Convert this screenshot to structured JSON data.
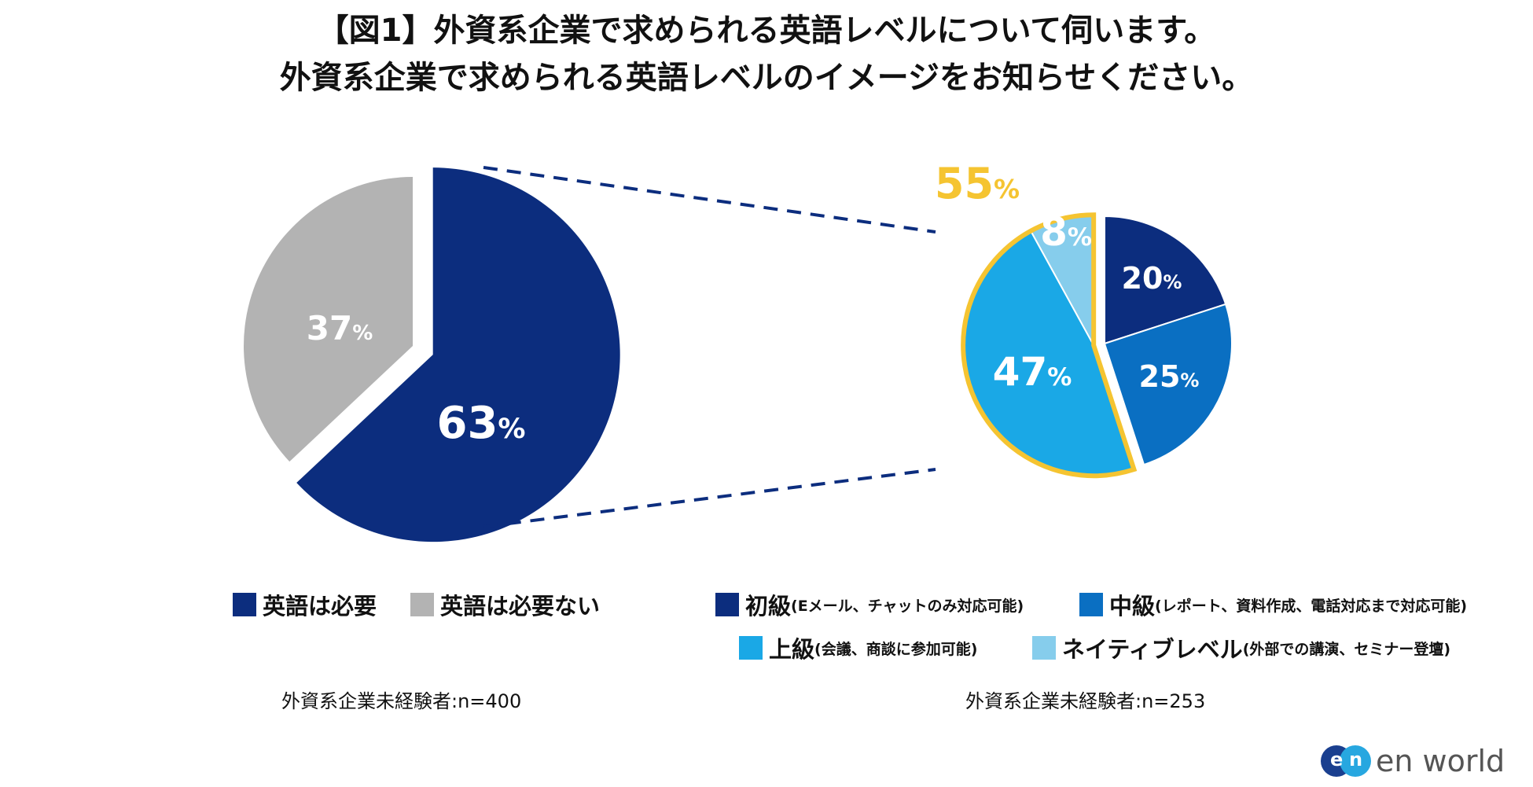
{
  "title_line1": "【図1】外資系企業で求められる英語レベルについて伺います。",
  "title_line2": "外資系企業で求められる英語レベルのイメージをお知らせください。",
  "chart_data": [
    {
      "type": "pie",
      "name": "英語の必要性",
      "categories": [
        "英語は必要",
        "英語は必要ない"
      ],
      "values": [
        63,
        37
      ],
      "labels": [
        "63",
        "37"
      ],
      "unit": "%",
      "colors": [
        "#0c2d7e",
        "#b3b3b3"
      ],
      "note": "外資系企業未経験者:n=400"
    },
    {
      "type": "pie",
      "name": "求められる英語レベル",
      "categories": [
        "初級",
        "中級",
        "上級",
        "ネイティブレベル"
      ],
      "descriptions": [
        "(Eメール、チャットのみ対応可能)",
        "(レポート、資料作成、電話対応まで対応可能)",
        "(会議、商談に参加可能)",
        "(外部での講演、セミナー登壇)"
      ],
      "values": [
        20,
        25,
        47,
        8
      ],
      "labels": [
        "20",
        "25",
        "47",
        "8"
      ],
      "unit": "%",
      "colors": [
        "#0c2d7e",
        "#0a6fc2",
        "#1aa8e6",
        "#86cdec"
      ],
      "highlight": {
        "label": "55",
        "unit": "%",
        "categories": [
          "上級",
          "ネイティブレベル"
        ],
        "color": "#f5c431"
      },
      "note": "外資系企業未経験者:n=253"
    }
  ],
  "logo": {
    "mark_left": "e",
    "mark_right": "n",
    "text": "en world"
  }
}
